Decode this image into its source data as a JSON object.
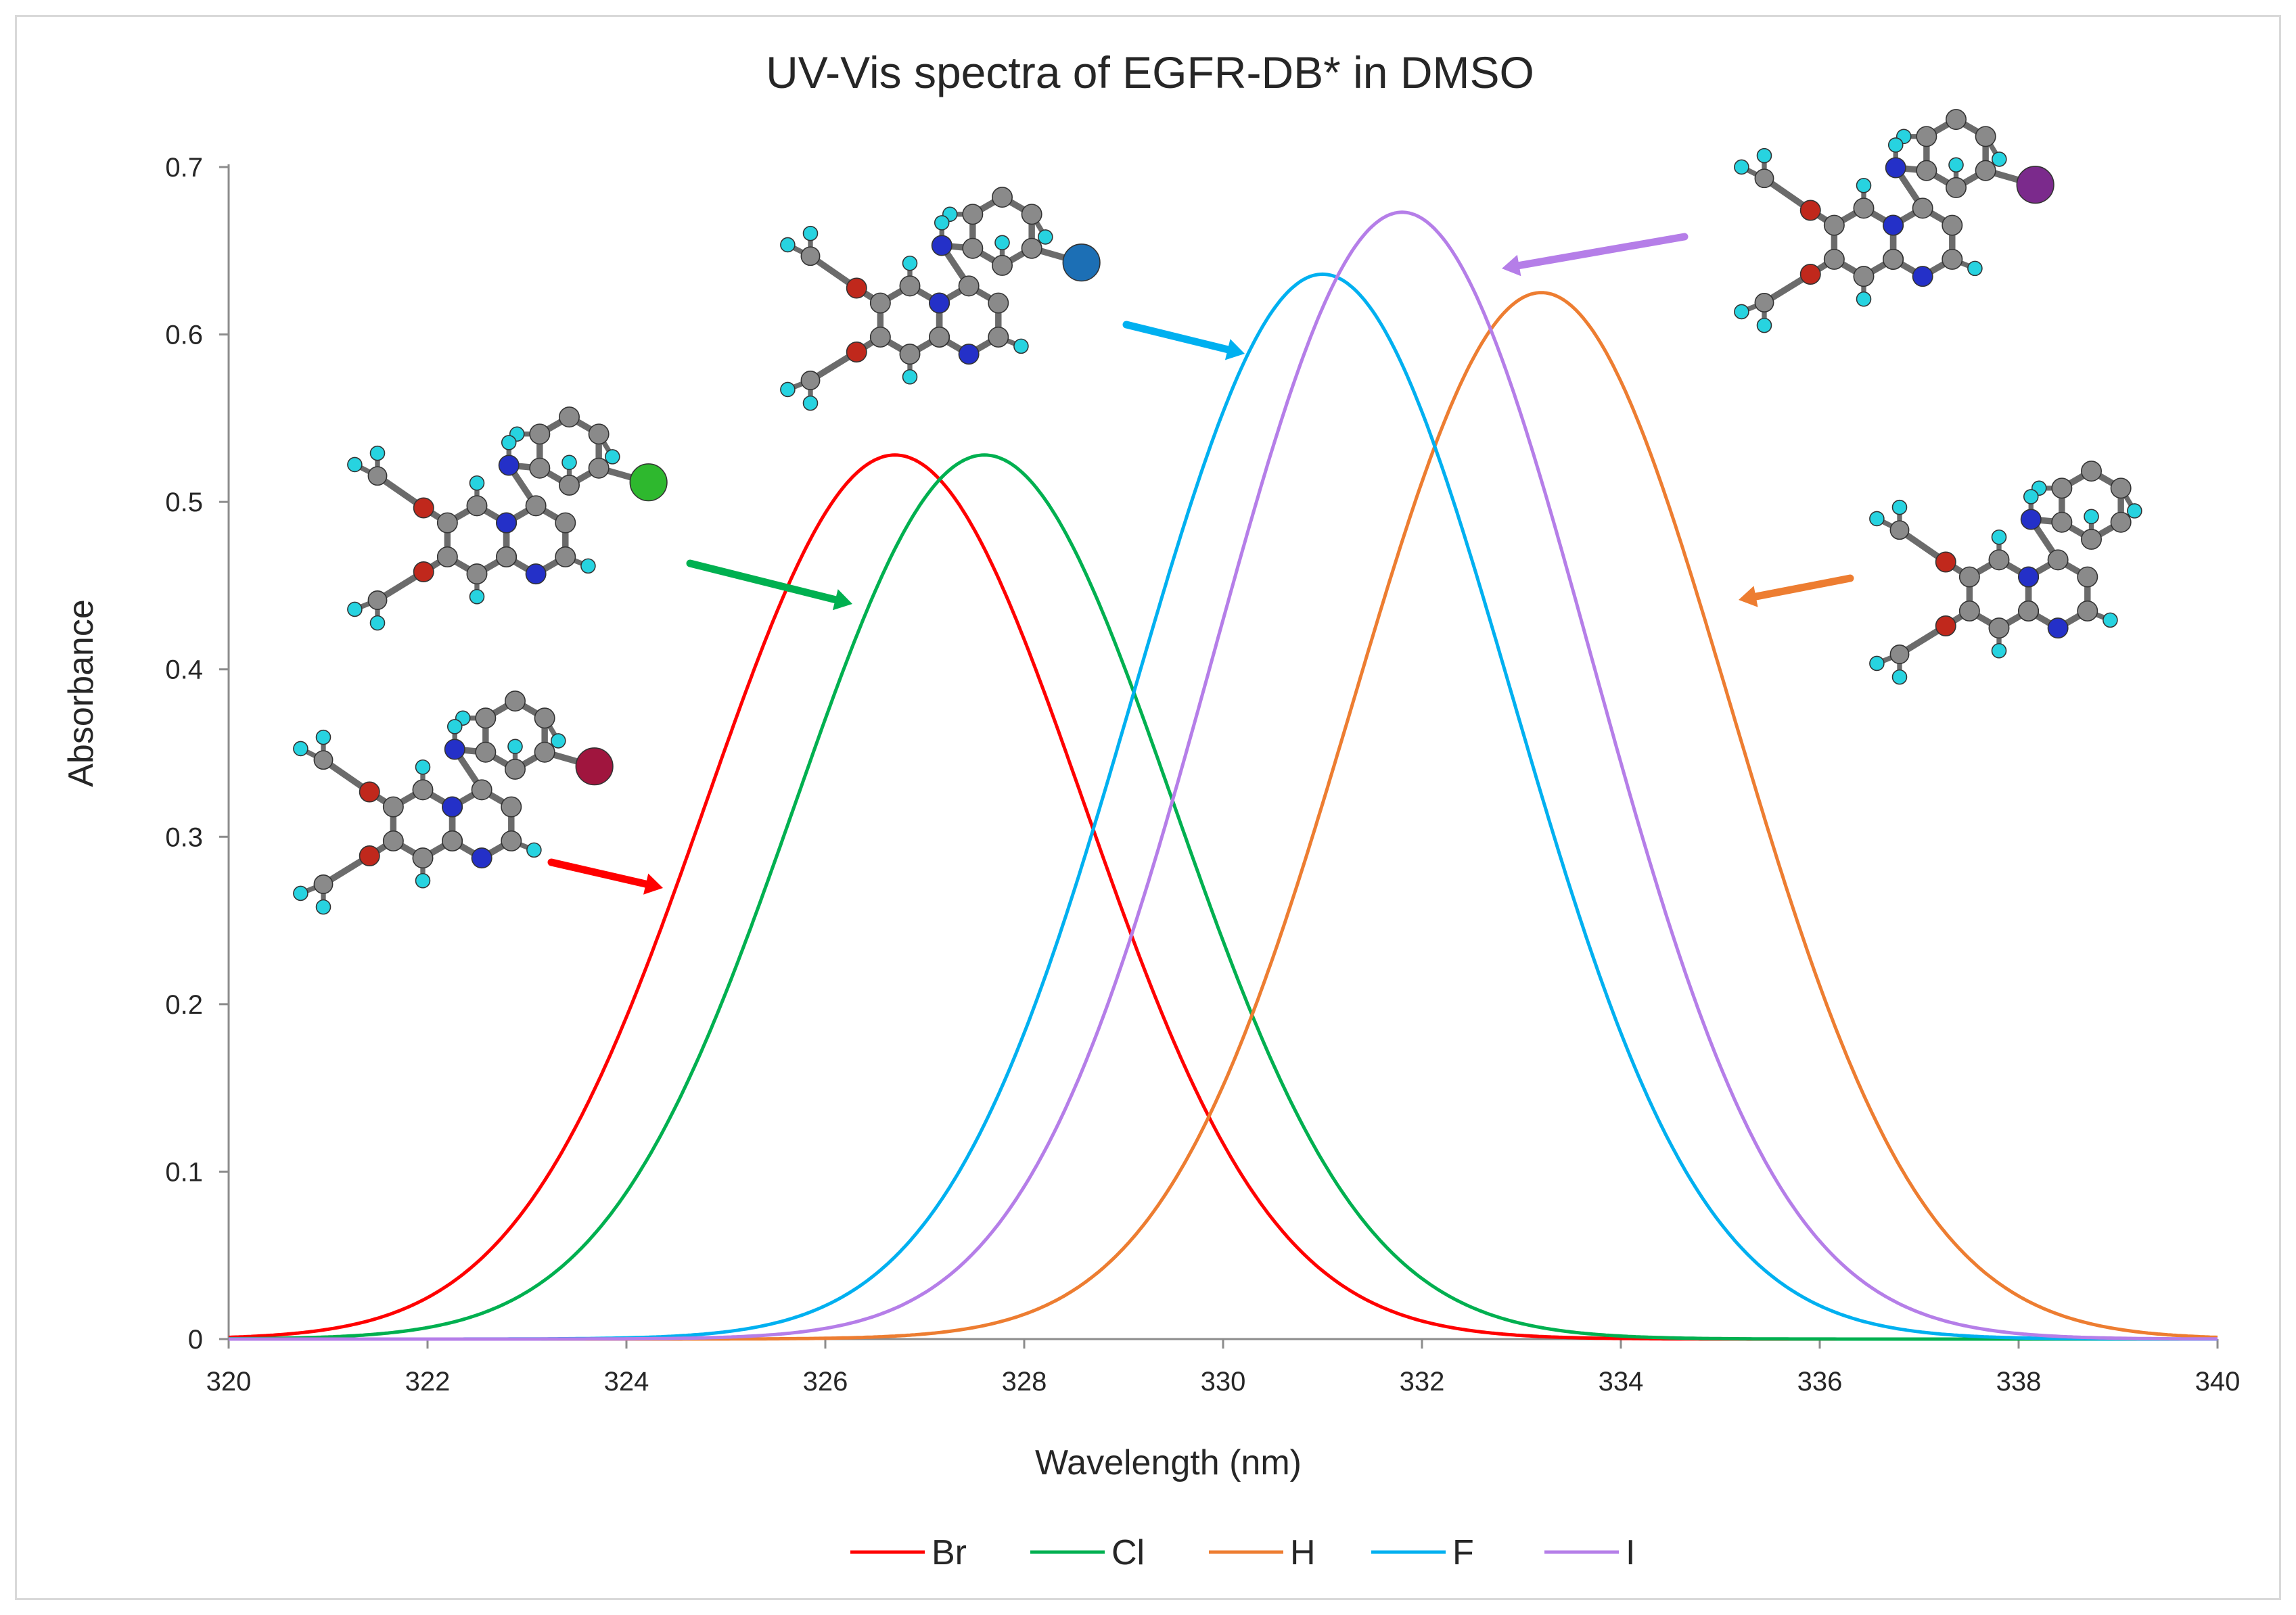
{
  "chart_data": {
    "type": "line",
    "title": "UV-Vis spectra of EGFR-DB* in DMSO",
    "xlabel": "Wavelength (nm)",
    "ylabel": "Absorbance",
    "xlim": [
      320,
      340
    ],
    "ylim": [
      0,
      0.7
    ],
    "xticks": [
      320,
      322,
      324,
      326,
      328,
      330,
      332,
      334,
      336,
      338,
      340
    ],
    "yticks": [
      0,
      0.1,
      0.2,
      0.3,
      0.4,
      0.5,
      0.6,
      0.7
    ],
    "grid": false,
    "legend_position": "bottom",
    "peak_width_nm": 1.9,
    "series": [
      {
        "name": "Br",
        "color": "#ff0000",
        "peak_x": 326.7,
        "peak_y": 0.528
      },
      {
        "name": "Cl",
        "color": "#00b050",
        "peak_x": 327.6,
        "peak_y": 0.528
      },
      {
        "name": "H",
        "color": "#ed7d31",
        "peak_x": 333.2,
        "peak_y": 0.625
      },
      {
        "name": "F",
        "color": "#00b0f0",
        "peak_x": 331.0,
        "peak_y": 0.636
      },
      {
        "name": "I",
        "color": "#b57ee8",
        "peak_x": 331.8,
        "peak_y": 0.673
      }
    ],
    "annotations": [
      {
        "label": "Br",
        "shape": "molecule",
        "halogen_color": "#a0153e"
      },
      {
        "label": "Cl",
        "shape": "molecule",
        "halogen_color": "#2eb82e"
      },
      {
        "label": "F",
        "shape": "molecule",
        "halogen_color": "#1c6fb5"
      },
      {
        "label": "I",
        "shape": "molecule",
        "halogen_color": "#7b2a8c"
      },
      {
        "label": "H",
        "shape": "molecule",
        "halogen_color": ""
      }
    ]
  }
}
